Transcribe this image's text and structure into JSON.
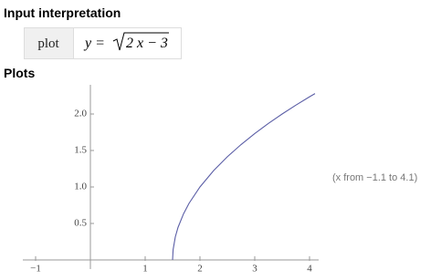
{
  "sections": {
    "input_title": "Input interpretation",
    "plots_title": "Plots"
  },
  "interpretation": {
    "label": "plot",
    "lhs": "y =",
    "radicand": "2 x − 3"
  },
  "chart_data": {
    "type": "line",
    "x": [
      1.5,
      1.51,
      1.55,
      1.6,
      1.7,
      1.8,
      2,
      2.25,
      2.5,
      2.75,
      3,
      3.25,
      3.5,
      3.75,
      4,
      4.1
    ],
    "values": [
      0,
      0.141,
      0.316,
      0.447,
      0.632,
      0.775,
      1,
      1.225,
      1.414,
      1.581,
      1.732,
      1.871,
      2,
      2.121,
      2.236,
      2.28
    ],
    "color": "#5b5ea6",
    "xlim": [
      -1.1,
      4.1
    ],
    "ylim": [
      0,
      2.4
    ],
    "xticks": [
      {
        "value": -1,
        "label": "−1"
      },
      1,
      2,
      3,
      4
    ],
    "yticks": [
      0.5,
      {
        "value": 1,
        "label": "1.0"
      },
      1.5,
      {
        "value": 2,
        "label": "2.0"
      }
    ],
    "annotation": "(x from −1.1 to 4.1)"
  }
}
